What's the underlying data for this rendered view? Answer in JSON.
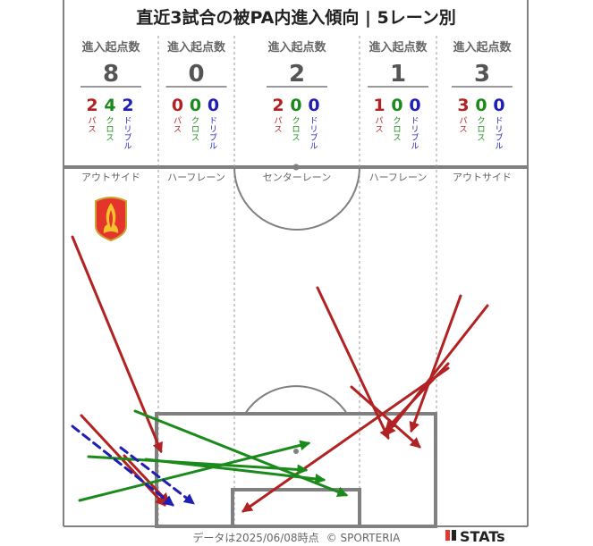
{
  "chart_data": {
    "type": "pitch-arrow-map",
    "title": "直近3試合の被PA内進入傾向 | 5レーン別",
    "entry_label": "進入起点数",
    "type_labels": {
      "pass": "パス",
      "cross": "クロス",
      "dribble": "ドリブル"
    },
    "colors": {
      "pass": "#b22222",
      "cross": "#1a8a1a",
      "dribble": "#1f1fb4",
      "total": "#555555",
      "lines": "#808080"
    },
    "lanes": [
      {
        "name": "アウトサイド",
        "total": "8",
        "pass": "2",
        "cross": "4",
        "dribble": "2"
      },
      {
        "name": "ハーフレーン",
        "total": "0",
        "pass": "0",
        "cross": "0",
        "dribble": "0"
      },
      {
        "name": "センターレーン",
        "total": "2",
        "pass": "2",
        "cross": "0",
        "dribble": "0"
      },
      {
        "name": "ハーフレーン",
        "total": "1",
        "pass": "1",
        "cross": "0",
        "dribble": "0"
      },
      {
        "name": "アウトサイド",
        "total": "3",
        "pass": "3",
        "cross": "0",
        "dribble": "0"
      }
    ],
    "arrows": [
      {
        "type": "pass",
        "from": [
          10,
          78
        ],
        "to": [
          109,
          318
        ]
      },
      {
        "type": "pass",
        "from": [
          20,
          278
        ],
        "to": [
          113,
          378
        ]
      },
      {
        "type": "pass",
        "from": [
          68,
          323
        ],
        "to": [
          117,
          375
        ]
      },
      {
        "type": "pass",
        "from": [
          284,
          135
        ],
        "to": [
          363,
          303
        ]
      },
      {
        "type": "pass",
        "from": [
          322,
          246
        ],
        "to": [
          398,
          313
        ]
      },
      {
        "type": "pass",
        "from": [
          430,
          225
        ],
        "to": [
          201,
          385
        ]
      },
      {
        "type": "pass",
        "from": [
          444,
          144
        ],
        "to": [
          389,
          295
        ]
      },
      {
        "type": "pass",
        "from": [
          474,
          155
        ],
        "to": [
          361,
          299
        ]
      },
      {
        "type": "pass",
        "from": [
          430,
          220
        ],
        "to": [
          361,
          293
        ]
      },
      {
        "type": "cross",
        "from": [
          18,
          373
        ],
        "to": [
          274,
          309
        ]
      },
      {
        "type": "cross",
        "from": [
          28,
          324
        ],
        "to": [
          271,
          339
        ]
      },
      {
        "type": "cross",
        "from": [
          80,
          273
        ],
        "to": [
          316,
          367
        ]
      },
      {
        "type": "cross",
        "from": [
          92,
          327
        ],
        "to": [
          291,
          350
        ]
      },
      {
        "type": "dribble",
        "from": [
          10,
          290
        ],
        "to": [
          122,
          378
        ]
      },
      {
        "type": "dribble",
        "from": [
          64,
          314
        ],
        "to": [
          145,
          376
        ]
      }
    ]
  },
  "footer": {
    "date_text": "データは2025/06/08時点",
    "copyright_text": "© SPORTERIA",
    "brand_text": "STATs"
  }
}
